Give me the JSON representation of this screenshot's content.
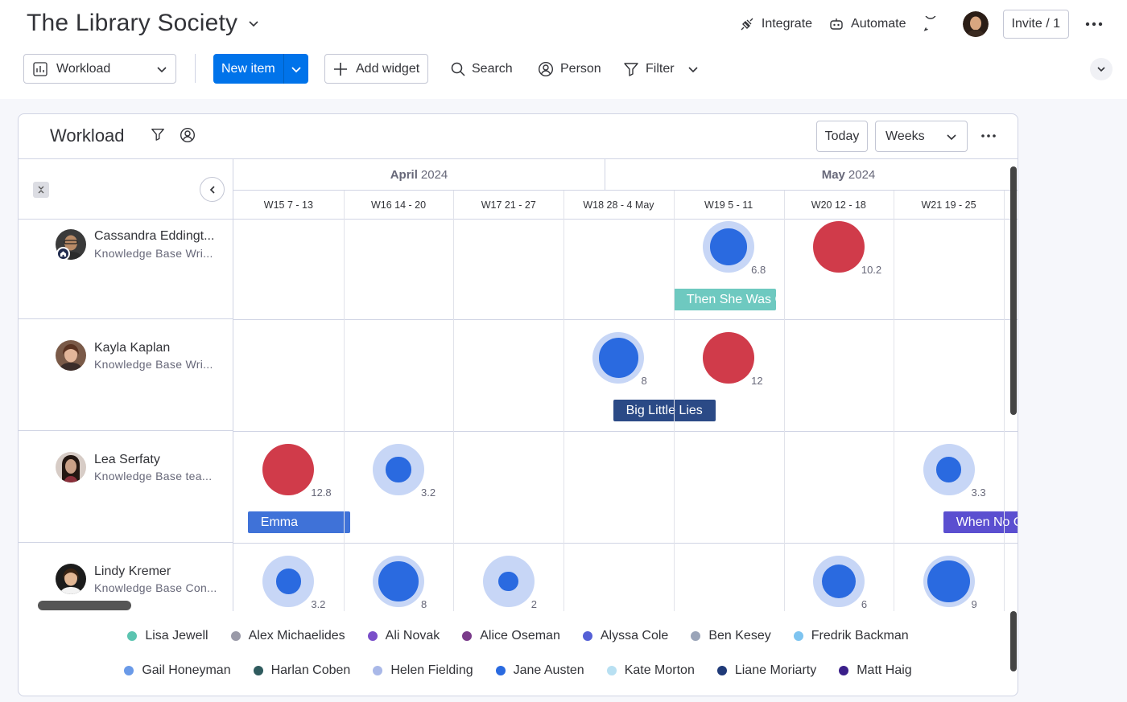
{
  "board": {
    "title": "The Library Society"
  },
  "top_actions": {
    "integrate": "Integrate",
    "automate": "Automate",
    "invite": "Invite / 1"
  },
  "toolbar": {
    "view": "Workload",
    "new_item": "New item",
    "add_widget": "Add widget",
    "search": "Search",
    "person": "Person",
    "filter": "Filter"
  },
  "widget": {
    "title": "Workload",
    "today": "Today",
    "scale": "Weeks",
    "months": [
      {
        "name": "April",
        "year": "2024"
      },
      {
        "name": "May",
        "year": "2024"
      }
    ],
    "weeks": [
      "W15 7 - 13",
      "W16 14 - 20",
      "W17 21 - 27",
      "W18 28 - 4 May",
      "W19 5 - 11",
      "W20 12 - 18",
      "W21 19 - 25"
    ]
  },
  "people": [
    {
      "name": "Cassandra Eddingt...",
      "role": "Knowledge Base Wri...",
      "workload": [
        {
          "week": 4,
          "value": "6.8",
          "level": 0.68,
          "status": "normal"
        },
        {
          "week": 5,
          "value": "10.2",
          "level": 1.0,
          "status": "over"
        }
      ],
      "items": [
        {
          "label": "Then She Was G",
          "color": "#6ec9c0",
          "start_week": 4,
          "span_weeks": 0.93
        }
      ]
    },
    {
      "name": "Kayla Kaplan",
      "role": "Knowledge Base Wri...",
      "workload": [
        {
          "week": 3,
          "value": "8",
          "level": 0.8,
          "status": "normal"
        },
        {
          "week": 4,
          "value": "12",
          "level": 1.0,
          "status": "over"
        }
      ],
      "items": [
        {
          "label": "Big Little Lies",
          "color": "#2b4a86",
          "start_week": 3.45,
          "span_weeks": 0.93
        }
      ]
    },
    {
      "name": "Lea Serfaty",
      "role": "Knowledge Base tea...",
      "workload": [
        {
          "week": 0,
          "value": "12.8",
          "level": 1.0,
          "status": "over"
        },
        {
          "week": 1,
          "value": "3.2",
          "level": 0.32,
          "status": "normal"
        },
        {
          "week": 6,
          "value": "3.3",
          "level": 0.33,
          "status": "normal"
        }
      ],
      "items": [
        {
          "label": "Emma",
          "color": "#3f72d8",
          "start_week": 0.13,
          "span_weeks": 0.93
        },
        {
          "label": "When No O",
          "color": "#5b4fd0",
          "start_week": 6.45,
          "span_weeks": 0.8
        }
      ]
    },
    {
      "name": "Lindy Kremer",
      "role": "Knowledge Base Con...",
      "workload": [
        {
          "week": 0,
          "value": "3.2",
          "level": 0.32,
          "status": "normal"
        },
        {
          "week": 1,
          "value": "8",
          "level": 0.8,
          "status": "normal"
        },
        {
          "week": 2,
          "value": "2",
          "level": 0.2,
          "status": "normal"
        },
        {
          "week": 5,
          "value": "6",
          "level": 0.6,
          "status": "normal"
        },
        {
          "week": 6,
          "value": "9",
          "level": 0.9,
          "status": "normal"
        }
      ],
      "items": []
    }
  ],
  "legend": [
    [
      {
        "name": "Lisa Jewell",
        "color": "#5bc4b0"
      },
      {
        "name": "Alex Michaelides",
        "color": "#9a9aa8"
      },
      {
        "name": "Ali Novak",
        "color": "#7a4fc9"
      },
      {
        "name": "Alice Oseman",
        "color": "#7a3b8a"
      },
      {
        "name": "Alyssa Cole",
        "color": "#5560d6"
      },
      {
        "name": "Ben Kesey",
        "color": "#9aa4b8"
      },
      {
        "name": "Fredrik Backman",
        "color": "#7ec4f0"
      }
    ],
    [
      {
        "name": "Gail Honeyman",
        "color": "#6a9ae8"
      },
      {
        "name": "Harlan Coben",
        "color": "#2f5b5e"
      },
      {
        "name": "Helen Fielding",
        "color": "#a9b8e8"
      },
      {
        "name": "Jane Austen",
        "color": "#2a6ae0"
      },
      {
        "name": "Kate Morton",
        "color": "#b8e0f2"
      },
      {
        "name": "Liane Moriarty",
        "color": "#1f3a78"
      },
      {
        "name": "Matt Haig",
        "color": "#3a1f8a"
      }
    ]
  ],
  "colors": {
    "accent": "#0073ea",
    "over": "#d03b4a",
    "normal_ring": "#c7d6f6",
    "normal_fill": "#2a6ae0"
  }
}
